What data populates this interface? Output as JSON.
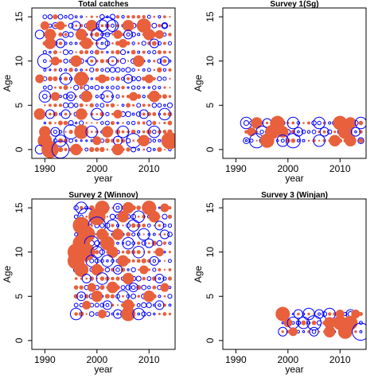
{
  "figure": {
    "colors": {
      "positive": "#0000ff",
      "negative": "#e8603c",
      "axis": "#000000"
    }
  },
  "chart_data": [
    {
      "type": "scatter",
      "title": "Total catches",
      "xlabel": "year",
      "ylabel": "Age",
      "xlim": [
        1987.5,
        2015
      ],
      "ylim": [
        -1,
        16
      ],
      "x_ticks": [
        "1990",
        "2000",
        "2010"
      ],
      "y_ticks": [
        "0",
        "5",
        "10",
        "15"
      ],
      "years": [
        1990,
        2014
      ],
      "ages": [
        0,
        15
      ],
      "grid": false,
      "legend": "none",
      "points": [
        [
          1990,
          14,
          "neg",
          2
        ],
        [
          1992,
          14,
          "pos",
          1
        ],
        [
          1993,
          14,
          "neg",
          2
        ],
        [
          1996,
          14,
          "pos",
          2
        ],
        [
          1999,
          14,
          "neg",
          3
        ],
        [
          2001,
          14,
          "pos",
          3
        ],
        [
          2002,
          14,
          "pos",
          5
        ],
        [
          2003,
          14,
          "pos",
          3
        ],
        [
          2006,
          14,
          "neg",
          3
        ],
        [
          2009,
          14,
          "neg",
          4
        ],
        [
          2013,
          14,
          "pos",
          1
        ],
        [
          1989,
          13,
          "pos",
          2
        ],
        [
          1991,
          13,
          "neg",
          3
        ],
        [
          1994,
          13,
          "pos",
          1
        ],
        [
          1997,
          13,
          "neg",
          3
        ],
        [
          2000,
          13,
          "pos",
          3
        ],
        [
          2004,
          13,
          "neg",
          2
        ],
        [
          2006,
          13,
          "pos",
          2
        ],
        [
          2010,
          13,
          "neg",
          3
        ],
        [
          2012,
          13,
          "neg",
          2
        ],
        [
          1991,
          12,
          "neg",
          3
        ],
        [
          1993,
          12,
          "pos",
          2
        ],
        [
          1998,
          12,
          "neg",
          3
        ],
        [
          2001,
          12,
          "pos",
          3
        ],
        [
          2005,
          12,
          "neg",
          2
        ],
        [
          2011,
          12,
          "pos",
          2
        ],
        [
          1990,
          10,
          "pos",
          4
        ],
        [
          1992,
          10,
          "neg",
          2
        ],
        [
          1996,
          10,
          "neg",
          3
        ],
        [
          1999,
          10,
          "pos",
          2
        ],
        [
          2003,
          10,
          "pos",
          2
        ],
        [
          2008,
          10,
          "neg",
          3
        ],
        [
          2013,
          10,
          "pos",
          2
        ],
        [
          1989,
          8,
          "neg",
          2
        ],
        [
          1994,
          8,
          "pos",
          3
        ],
        [
          1997,
          8,
          "neg",
          4
        ],
        [
          2001,
          8,
          "neg",
          2
        ],
        [
          2006,
          8,
          "pos",
          2
        ],
        [
          2010,
          8,
          "neg",
          2
        ],
        [
          1990,
          6,
          "pos",
          3
        ],
        [
          1992,
          6,
          "neg",
          2
        ],
        [
          1995,
          6,
          "pos",
          2
        ],
        [
          1998,
          6,
          "neg",
          3
        ],
        [
          2002,
          6,
          "pos",
          3
        ],
        [
          2007,
          6,
          "neg",
          2
        ],
        [
          2011,
          6,
          "neg",
          3
        ],
        [
          1989,
          4,
          "neg",
          3
        ],
        [
          1991,
          4,
          "pos",
          2
        ],
        [
          1994,
          4,
          "pos",
          2
        ],
        [
          1997,
          4,
          "neg",
          3
        ],
        [
          2000,
          4,
          "pos",
          3
        ],
        [
          2004,
          4,
          "neg",
          2
        ],
        [
          2009,
          4,
          "pos",
          2
        ],
        [
          2013,
          4,
          "pos",
          3
        ],
        [
          1990,
          2,
          "neg",
          3
        ],
        [
          1992,
          2,
          "pos",
          2
        ],
        [
          1995,
          2,
          "pos",
          4
        ],
        [
          1997,
          2,
          "neg",
          4
        ],
        [
          1999,
          2,
          "pos",
          3
        ],
        [
          2002,
          2,
          "neg",
          3
        ],
        [
          2005,
          2,
          "pos",
          3
        ],
        [
          2011,
          2,
          "pos",
          3
        ],
        [
          1990,
          1,
          "neg",
          4
        ],
        [
          1993,
          1,
          "pos",
          3
        ],
        [
          2000,
          1,
          "neg",
          2
        ],
        [
          2004,
          1,
          "pos",
          2
        ],
        [
          2007,
          1,
          "pos",
          4
        ],
        [
          2009,
          1,
          "neg",
          3
        ],
        [
          2014,
          1,
          "neg",
          5
        ],
        [
          1989,
          0,
          "pos",
          2
        ],
        [
          1991,
          0,
          "neg",
          5
        ],
        [
          1993,
          0,
          "pos",
          5
        ],
        [
          1996,
          0,
          "neg",
          3
        ],
        [
          2004,
          0,
          "neg",
          3
        ]
      ]
    },
    {
      "type": "scatter",
      "title": "Survey 1(Sg)",
      "xlabel": "year",
      "ylabel": "Age",
      "xlim": [
        1987.5,
        2015
      ],
      "ylim": [
        -1,
        16
      ],
      "x_ticks": [
        "1990",
        "2000",
        "2010"
      ],
      "y_ticks": [
        "0",
        "5",
        "10",
        "15"
      ],
      "years": [
        1992,
        2014
      ],
      "ages": [
        1,
        3
      ],
      "grid": false,
      "legend": "none",
      "points": [
        [
          1992,
          3,
          "pos",
          3
        ],
        [
          1994,
          3,
          "neg",
          3
        ],
        [
          1996,
          3,
          "pos",
          2
        ],
        [
          1998,
          3,
          "neg",
          4
        ],
        [
          2001,
          3,
          "pos",
          3
        ],
        [
          2006,
          3,
          "pos",
          3
        ],
        [
          2010,
          3,
          "neg",
          4
        ],
        [
          2012,
          3,
          "neg",
          3
        ],
        [
          2014,
          3,
          "pos",
          3
        ],
        [
          1993,
          2,
          "neg",
          2
        ],
        [
          1995,
          2,
          "pos",
          3
        ],
        [
          1997,
          2,
          "neg",
          4
        ],
        [
          1999,
          2,
          "neg",
          3
        ],
        [
          2002,
          2,
          "pos",
          2
        ],
        [
          2007,
          2,
          "pos",
          2
        ],
        [
          2011,
          2,
          "neg",
          4
        ],
        [
          2013,
          2,
          "pos",
          2
        ],
        [
          1992,
          1,
          "pos",
          1
        ],
        [
          1994,
          1,
          "pos",
          4
        ],
        [
          1996,
          1,
          "neg",
          4
        ],
        [
          1999,
          1,
          "pos",
          3
        ],
        [
          2001,
          1,
          "pos",
          4
        ],
        [
          2006,
          1,
          "pos",
          3
        ],
        [
          2009,
          1,
          "neg",
          3
        ],
        [
          2012,
          1,
          "neg",
          3
        ],
        [
          2014,
          1,
          "pos",
          1
        ]
      ]
    },
    {
      "type": "scatter",
      "title": "Survey 2 (Winnov)",
      "xlabel": "year",
      "ylabel": "Age",
      "xlim": [
        1987.5,
        2015
      ],
      "ylim": [
        -1,
        16
      ],
      "x_ticks": [
        "1990",
        "2000",
        "2010"
      ],
      "y_ticks": [
        "0",
        "5",
        "10",
        "15"
      ],
      "years": [
        1996,
        2014
      ],
      "ages": [
        3,
        15
      ],
      "grid": false,
      "legend": "none",
      "points": [
        [
          1997,
          15,
          "pos",
          3
        ],
        [
          2001,
          15,
          "neg",
          4
        ],
        [
          2004,
          15,
          "pos",
          2
        ],
        [
          2006,
          15,
          "neg",
          3
        ],
        [
          2010,
          15,
          "neg",
          4
        ],
        [
          2013,
          15,
          "neg",
          2
        ],
        [
          1998,
          14,
          "pos",
          5
        ],
        [
          2000,
          14,
          "neg",
          5
        ],
        [
          2005,
          14,
          "neg",
          3
        ],
        [
          2008,
          14,
          "pos",
          3
        ],
        [
          2011,
          14,
          "neg",
          3
        ],
        [
          1997,
          13,
          "neg",
          5
        ],
        [
          2000,
          13,
          "pos",
          5
        ],
        [
          2003,
          13,
          "pos",
          3
        ],
        [
          2007,
          13,
          "pos",
          3
        ],
        [
          2012,
          13,
          "pos",
          2
        ],
        [
          1998,
          12,
          "neg",
          5
        ],
        [
          2001,
          12,
          "neg",
          3
        ],
        [
          2004,
          12,
          "neg",
          3
        ],
        [
          2009,
          12,
          "pos",
          3
        ],
        [
          2013,
          12,
          "pos",
          2
        ],
        [
          1997,
          11,
          "neg",
          5
        ],
        [
          1999,
          11,
          "pos",
          4
        ],
        [
          2002,
          11,
          "neg",
          4
        ],
        [
          2006,
          11,
          "pos",
          3
        ],
        [
          2010,
          11,
          "pos",
          2
        ],
        [
          1996,
          10,
          "neg",
          5
        ],
        [
          1998,
          10,
          "neg",
          5
        ],
        [
          2000,
          10,
          "pos",
          3
        ],
        [
          2003,
          10,
          "neg",
          3
        ],
        [
          2008,
          10,
          "pos",
          3
        ],
        [
          2012,
          10,
          "neg",
          2
        ],
        [
          1996,
          9,
          "neg",
          5
        ],
        [
          1999,
          9,
          "pos",
          3
        ],
        [
          2002,
          9,
          "pos",
          3
        ],
        [
          2005,
          9,
          "neg",
          3
        ],
        [
          2011,
          9,
          "pos",
          2
        ],
        [
          1997,
          8,
          "neg",
          4
        ],
        [
          2000,
          8,
          "neg",
          3
        ],
        [
          2004,
          8,
          "pos",
          2
        ],
        [
          2009,
          8,
          "neg",
          2
        ],
        [
          1998,
          7,
          "pos",
          2
        ],
        [
          2001,
          7,
          "pos",
          3
        ],
        [
          2006,
          7,
          "neg",
          3
        ],
        [
          2012,
          7,
          "pos",
          2
        ],
        [
          1999,
          6,
          "neg",
          2
        ],
        [
          2003,
          6,
          "neg",
          3
        ],
        [
          2007,
          6,
          "pos",
          2
        ],
        [
          2013,
          6,
          "neg",
          2
        ],
        [
          1997,
          5,
          "pos",
          2
        ],
        [
          2000,
          5,
          "neg",
          3
        ],
        [
          2005,
          5,
          "pos",
          3
        ],
        [
          2010,
          5,
          "neg",
          3
        ],
        [
          1998,
          4,
          "neg",
          2
        ],
        [
          2002,
          4,
          "pos",
          2
        ],
        [
          2006,
          4,
          "neg",
          3
        ],
        [
          2012,
          4,
          "pos",
          2
        ],
        [
          1996,
          3,
          "pos",
          3
        ],
        [
          2001,
          3,
          "neg",
          2
        ],
        [
          2004,
          3,
          "pos",
          2
        ],
        [
          2006,
          3,
          "neg",
          4
        ],
        [
          2008,
          3,
          "pos",
          3
        ]
      ]
    },
    {
      "type": "scatter",
      "title": "Survey 3 (Winjan)",
      "xlabel": "year",
      "ylabel": "Age",
      "xlim": [
        1987.5,
        2015
      ],
      "ylim": [
        -1,
        16
      ],
      "x_ticks": [
        "1990",
        "2000",
        "2010"
      ],
      "y_ticks": [
        "0",
        "5",
        "10",
        "15"
      ],
      "years": [
        1999,
        2014
      ],
      "ages": [
        1,
        3
      ],
      "grid": false,
      "legend": "none",
      "points": [
        [
          1999,
          3,
          "neg",
          4
        ],
        [
          2002,
          3,
          "pos",
          2
        ],
        [
          2004,
          3,
          "pos",
          3
        ],
        [
          2006,
          3,
          "pos",
          2
        ],
        [
          2008,
          3,
          "pos",
          3
        ],
        [
          2010,
          3,
          "neg",
          2
        ],
        [
          2012,
          3,
          "pos",
          2
        ],
        [
          2013,
          3,
          "neg",
          2
        ],
        [
          2000,
          2,
          "neg",
          2
        ],
        [
          2001,
          2,
          "pos",
          3
        ],
        [
          2003,
          2,
          "pos",
          3
        ],
        [
          2005,
          2,
          "pos",
          4
        ],
        [
          2008,
          2,
          "neg",
          3
        ],
        [
          2010,
          2,
          "neg",
          4
        ],
        [
          2012,
          2,
          "neg",
          4
        ],
        [
          1999,
          1,
          "pos",
          2
        ],
        [
          2001,
          1,
          "neg",
          2
        ],
        [
          2005,
          1,
          "pos",
          2
        ],
        [
          2008,
          1,
          "neg",
          3
        ],
        [
          2011,
          1,
          "neg",
          4
        ],
        [
          2014,
          1,
          "pos",
          5
        ]
      ]
    }
  ]
}
